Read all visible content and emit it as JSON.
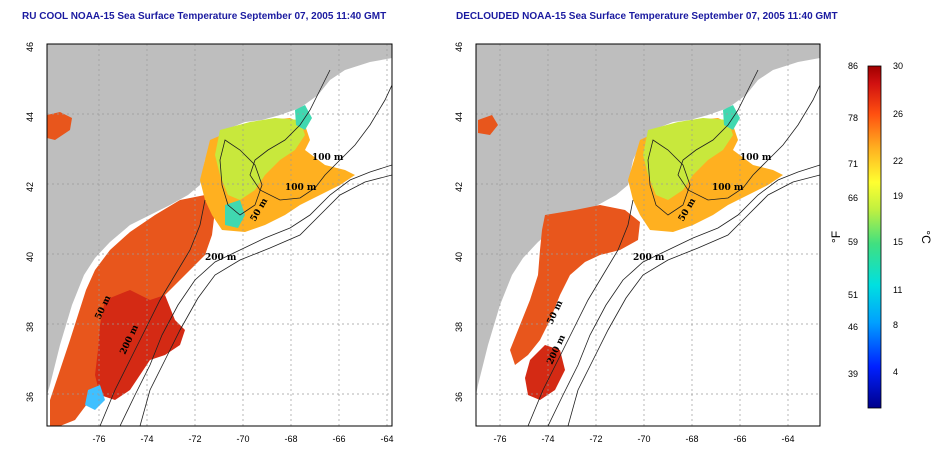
{
  "panels": [
    {
      "title": "RU COOL NOAA-15 Sea Surface Temperature September 07, 2005 11:40 GMT",
      "contour_labels": [
        "100 m",
        "100 m",
        "50 m",
        "200 m",
        "200 m",
        "50 m"
      ]
    },
    {
      "title": "DECLOUDED NOAA-15 Sea Surface Temperature September 07, 2005 11:40 GMT",
      "contour_labels": [
        "100 m",
        "100 m",
        "50 m",
        "200 m",
        "50 m",
        "200 m"
      ]
    }
  ],
  "axes": {
    "lon_ticks": [
      "-76",
      "-74",
      "-72",
      "-70",
      "-68",
      "-66",
      "-64"
    ],
    "lat_ticks": [
      "46",
      "44",
      "42",
      "40",
      "38",
      "36"
    ],
    "lon_range": [
      -77.2,
      -62.8
    ],
    "lat_range": [
      35,
      46
    ]
  },
  "colorbar": {
    "fahrenheit_label": "°F",
    "celsius_label": "°C",
    "fahrenheit_ticks": [
      "86",
      "78",
      "71",
      "66",
      "59",
      "51",
      "46",
      "39"
    ],
    "celsius_ticks": [
      "30",
      "26",
      "22",
      "19",
      "15",
      "11",
      "8",
      "4"
    ],
    "range_c": [
      0,
      30
    ]
  },
  "colors": {
    "land": "#bebebe",
    "cloud": "#ffffff",
    "title": "#1a1aa0",
    "grid": "#9a9a9a"
  }
}
